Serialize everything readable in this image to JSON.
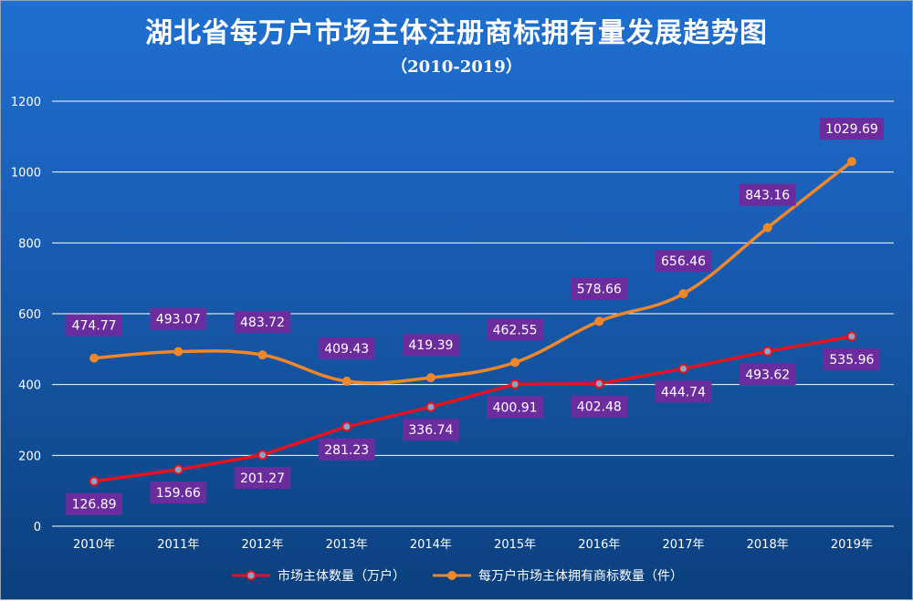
{
  "title": "湖北省每万户市场主体注册商标拥有量发展趋势图",
  "subtitle": "（2010-2019）",
  "colors": {
    "series1": "#e8121c",
    "series2": "#f0872a",
    "label_bg": "#6b2d9e",
    "marker_fill1": "#8aa4c8",
    "marker_fill2": "#f0872a"
  },
  "chart_data": {
    "type": "line",
    "title": "湖北省每万户市场主体注册商标拥有量发展趋势图",
    "subtitle": "（2010-2019）",
    "categories": [
      "2010年",
      "2011年",
      "2012年",
      "2013年",
      "2014年",
      "2015年",
      "2016年",
      "2017年",
      "2018年",
      "2019年"
    ],
    "ylim": [
      0,
      1200
    ],
    "yticks": [
      0,
      200,
      400,
      600,
      800,
      1000,
      1200
    ],
    "grid": true,
    "legend_position": "bottom",
    "series": [
      {
        "name": "市场主体数量（万户）",
        "values": [
          126.89,
          159.66,
          201.27,
          281.23,
          336.74,
          400.91,
          402.48,
          444.74,
          493.62,
          535.96
        ],
        "labels": [
          "126.89",
          "159.66",
          "201.27",
          "281.23",
          "336.74",
          "400.91",
          "402.48",
          "444.74",
          "493.62",
          "535.96"
        ],
        "label_position": "below"
      },
      {
        "name": "每万户市场主体拥有商标数量（件）",
        "values": [
          474.77,
          493.07,
          483.72,
          409.43,
          419.39,
          462.55,
          578.66,
          656.46,
          843.16,
          1029.69
        ],
        "labels": [
          "474.77",
          "493.07",
          "483.72",
          "409.43",
          "419.39",
          "462.55",
          "578.66",
          "656.46",
          "843.16",
          "1029.69"
        ],
        "label_position": "above"
      }
    ]
  }
}
